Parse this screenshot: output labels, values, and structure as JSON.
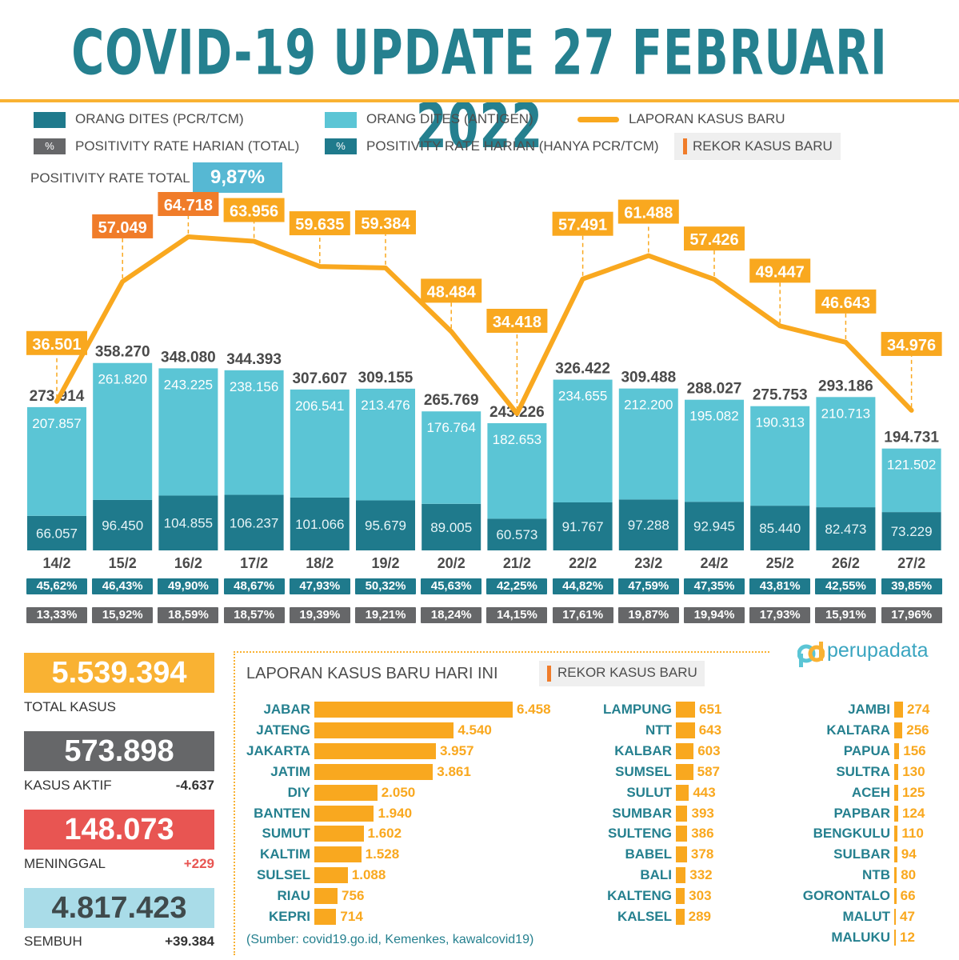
{
  "title": "COVID-19 UPDATE 27 FEBRUARI 2022",
  "colors": {
    "pcr": "#1f7a8c",
    "antigen": "#5bc5d5",
    "cases": "#f9a81f",
    "record": "#f07c2a",
    "gray": "#666769",
    "red": "#e85552",
    "light": "#a9dce8"
  },
  "legend": {
    "pcr": "ORANG DITES (PCR/TCM)",
    "antigen": "ORANG DITES (ANTIGEN)",
    "cases": "LAPORAN KASUS BARU",
    "pct_symbol": "%",
    "pos_total": "POSITIVITY RATE HARIAN (TOTAL)",
    "pos_pcr": "POSITIVITY RATE HARIAN (HANYA PCR/TCM)",
    "record": "REKOR KASUS BARU"
  },
  "positivity_total": {
    "label": "POSITIVITY RATE TOTAL",
    "value": "9,87%"
  },
  "chart_data": {
    "type": "bar",
    "categories": [
      "14/2",
      "15/2",
      "16/2",
      "17/2",
      "18/2",
      "19/2",
      "20/2",
      "21/2",
      "22/2",
      "23/2",
      "24/2",
      "25/2",
      "26/2",
      "27/2"
    ],
    "series": [
      {
        "name": "ORANG DITES (PCR/TCM)",
        "values": [
          66057,
          96450,
          104855,
          106237,
          101066,
          95679,
          89005,
          60573,
          91767,
          97288,
          92945,
          85440,
          82473,
          73229
        ],
        "labels": [
          "66.057",
          "96.450",
          "104.855",
          "106.237",
          "101.066",
          "95.679",
          "89.005",
          "60.573",
          "91.767",
          "97.288",
          "92.945",
          "85.440",
          "82.473",
          "73.229"
        ]
      },
      {
        "name": "ORANG DITES (ANTIGEN)",
        "values": [
          207857,
          261820,
          243225,
          238156,
          206541,
          213476,
          176764,
          182653,
          234655,
          212200,
          195082,
          190313,
          210713,
          121502
        ],
        "labels": [
          "207.857",
          "261.820",
          "243.225",
          "238.156",
          "206.541",
          "213.476",
          "176.764",
          "182.653",
          "234.655",
          "212.200",
          "195.082",
          "190.313",
          "210.713",
          "121.502"
        ]
      },
      {
        "name": "LAPORAN KASUS BARU",
        "values": [
          36501,
          57049,
          64718,
          63956,
          59635,
          59384,
          48484,
          34418,
          57491,
          61488,
          57426,
          49447,
          46643,
          34976
        ],
        "labels": [
          "36.501",
          "57.049",
          "64.718",
          "63.956",
          "59.635",
          "59.384",
          "48.484",
          "34.418",
          "57.491",
          "61.488",
          "57.426",
          "49.447",
          "46.643",
          "34.976"
        ],
        "record": [
          false,
          true,
          true,
          false,
          false,
          false,
          false,
          false,
          false,
          false,
          false,
          false,
          false,
          false
        ]
      }
    ],
    "totals": [
      "273.914",
      "358.270",
      "348.080",
      "344.393",
      "307.607",
      "309.155",
      "265.769",
      "243.226",
      "326.422",
      "309.488",
      "288.027",
      "275.753",
      "293.186",
      "194.731"
    ],
    "positivity_pcr": [
      "45,62%",
      "46,43%",
      "49,90%",
      "48,67%",
      "47,93%",
      "50,32%",
      "45,63%",
      "42,25%",
      "44,82%",
      "47,59%",
      "47,35%",
      "43,81%",
      "42,55%",
      "39,85%"
    ],
    "positivity_total": [
      "13,33%",
      "15,92%",
      "18,59%",
      "18,57%",
      "19,39%",
      "19,21%",
      "18,24%",
      "14,15%",
      "17,61%",
      "19,87%",
      "19,94%",
      "17,93%",
      "15,91%",
      "17,96%"
    ]
  },
  "stats": {
    "total": {
      "value": "5.539.394",
      "label": "TOTAL KASUS"
    },
    "active": {
      "value": "573.898",
      "label": "KASUS AKTIF",
      "delta": "-4.637"
    },
    "deaths": {
      "value": "148.073",
      "label": "MENINGGAL",
      "delta": "+229"
    },
    "recovered": {
      "value": "4.817.423",
      "label": "SEMBUH",
      "delta": "+39.384"
    }
  },
  "brand": {
    "mark": "pd",
    "name": "perupadata"
  },
  "today": {
    "title": "LAPORAN KASUS BARU HARI INI",
    "record_label": "REKOR KASUS BARU",
    "source": "(Sumber: covid19.go.id, Kemenkes, kawalcovid19)",
    "col1": [
      {
        "name": "JABAR",
        "value": 6458,
        "label": "6.458"
      },
      {
        "name": "JATENG",
        "value": 4540,
        "label": "4.540"
      },
      {
        "name": "JAKARTA",
        "value": 3957,
        "label": "3.957"
      },
      {
        "name": "JATIM",
        "value": 3861,
        "label": "3.861"
      },
      {
        "name": "DIY",
        "value": 2050,
        "label": "2.050"
      },
      {
        "name": "BANTEN",
        "value": 1940,
        "label": "1.940"
      },
      {
        "name": "SUMUT",
        "value": 1602,
        "label": "1.602"
      },
      {
        "name": "KALTIM",
        "value": 1528,
        "label": "1.528"
      },
      {
        "name": "SULSEL",
        "value": 1088,
        "label": "1.088"
      },
      {
        "name": "RIAU",
        "value": 756,
        "label": "756"
      },
      {
        "name": "KEPRI",
        "value": 714,
        "label": "714"
      }
    ],
    "col2": [
      {
        "name": "LAMPUNG",
        "value": 651,
        "label": "651"
      },
      {
        "name": "NTT",
        "value": 643,
        "label": "643"
      },
      {
        "name": "KALBAR",
        "value": 603,
        "label": "603"
      },
      {
        "name": "SUMSEL",
        "value": 587,
        "label": "587"
      },
      {
        "name": "SULUT",
        "value": 443,
        "label": "443"
      },
      {
        "name": "SUMBAR",
        "value": 393,
        "label": "393"
      },
      {
        "name": "SULTENG",
        "value": 386,
        "label": "386"
      },
      {
        "name": "BABEL",
        "value": 378,
        "label": "378"
      },
      {
        "name": "BALI",
        "value": 332,
        "label": "332"
      },
      {
        "name": "KALTENG",
        "value": 303,
        "label": "303"
      },
      {
        "name": "KALSEL",
        "value": 289,
        "label": "289"
      }
    ],
    "col3": [
      {
        "name": "JAMBI",
        "value": 274,
        "label": "274"
      },
      {
        "name": "KALTARA",
        "value": 256,
        "label": "256"
      },
      {
        "name": "PAPUA",
        "value": 156,
        "label": "156"
      },
      {
        "name": "SULTRA",
        "value": 130,
        "label": "130"
      },
      {
        "name": "ACEH",
        "value": 125,
        "label": "125"
      },
      {
        "name": "PAPBAR",
        "value": 124,
        "label": "124"
      },
      {
        "name": "BENGKULU",
        "value": 110,
        "label": "110"
      },
      {
        "name": "SULBAR",
        "value": 94,
        "label": "94"
      },
      {
        "name": "NTB",
        "value": 80,
        "label": "80"
      },
      {
        "name": "GORONTALO",
        "value": 66,
        "label": "66"
      },
      {
        "name": "MALUT",
        "value": 47,
        "label": "47"
      },
      {
        "name": "MALUKU",
        "value": 12,
        "label": "12"
      }
    ]
  }
}
